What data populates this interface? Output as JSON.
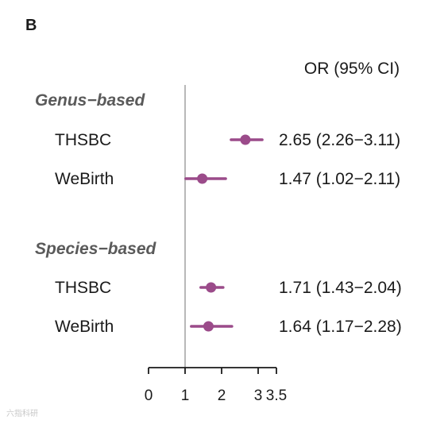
{
  "panel_label": "B",
  "watermark": "六指科研",
  "chart_data": {
    "type": "forest",
    "header": "OR (95% CI)",
    "xlim": [
      0,
      3.5
    ],
    "reference_line": 1,
    "xticks": [
      0,
      1,
      2,
      3,
      3.5
    ],
    "xtick_labels": [
      "0",
      "1",
      "2",
      "3",
      "3.5"
    ],
    "color": "#9b4b8a",
    "groups": [
      {
        "label": "Genus−based",
        "rows": [
          {
            "label": "THSBC",
            "or": 2.65,
            "lo": 2.26,
            "hi": 3.11,
            "text": "2.65 (2.26−3.11)"
          },
          {
            "label": "WeBirth",
            "or": 1.47,
            "lo": 1.02,
            "hi": 2.11,
            "text": "1.47 (1.02−2.11)"
          }
        ]
      },
      {
        "label": "Species−based",
        "rows": [
          {
            "label": "THSBC",
            "or": 1.71,
            "lo": 1.43,
            "hi": 2.04,
            "text": "1.71 (1.43−2.04)"
          },
          {
            "label": "WeBirth",
            "or": 1.64,
            "lo": 1.17,
            "hi": 2.28,
            "text": "1.64 (1.17−2.28)"
          }
        ]
      }
    ]
  }
}
